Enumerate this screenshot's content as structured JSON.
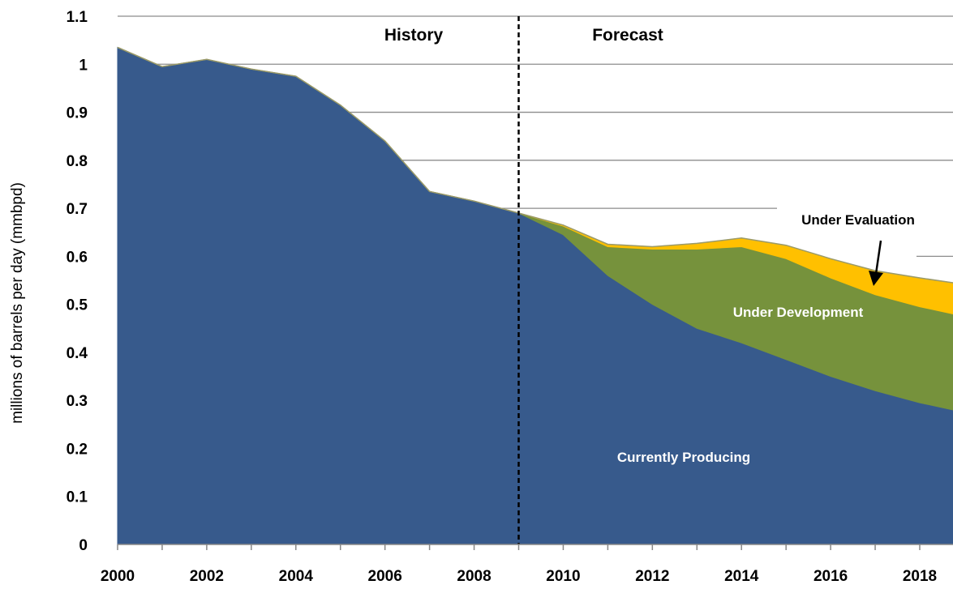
{
  "chart_data": {
    "type": "area",
    "stacked": true,
    "ylabel": "millions of barrels per day (mmbpd)",
    "xlabel": "",
    "x": [
      2000,
      2001,
      2002,
      2003,
      2004,
      2005,
      2006,
      2007,
      2008,
      2009,
      2010,
      2011,
      2012,
      2013,
      2014,
      2015,
      2016,
      2017,
      2018,
      2018.75
    ],
    "x_ticks": [
      "2000",
      "2002",
      "2004",
      "2006",
      "2008",
      "2010",
      "2012",
      "2014",
      "2016",
      "2018"
    ],
    "y_ticks": [
      "0",
      "0.1",
      "0.2",
      "0.3",
      "0.4",
      "0.5",
      "0.6",
      "0.7",
      "0.8",
      "0.9",
      "1",
      "1.1"
    ],
    "ylim": [
      0,
      1.1
    ],
    "series": [
      {
        "name": "Currently Producing",
        "color": "#375a8c",
        "label_color": "#ffffff",
        "values": [
          1.035,
          0.995,
          1.01,
          0.99,
          0.975,
          0.915,
          0.84,
          0.735,
          0.715,
          0.69,
          0.645,
          0.56,
          0.5,
          0.45,
          0.42,
          0.385,
          0.35,
          0.32,
          0.295,
          0.28
        ]
      },
      {
        "name": "Under Development",
        "color": "#76923c",
        "label_color": "#ffffff",
        "values": [
          0,
          0,
          0,
          0,
          0,
          0,
          0,
          0,
          0,
          0,
          0.018,
          0.06,
          0.115,
          0.165,
          0.2,
          0.21,
          0.205,
          0.2,
          0.2,
          0.2
        ]
      },
      {
        "name": "Under Evaluation",
        "color": "#ffc000",
        "label_color": "#000000",
        "values": [
          0,
          0,
          0,
          0,
          0,
          0,
          0,
          0,
          0,
          0,
          0.002,
          0.005,
          0.005,
          0.012,
          0.018,
          0.028,
          0.04,
          0.05,
          0.06,
          0.065
        ]
      }
    ],
    "annotations": {
      "divider_x": 2009,
      "history_label": "History",
      "forecast_label": "Forecast"
    },
    "grid": true
  }
}
